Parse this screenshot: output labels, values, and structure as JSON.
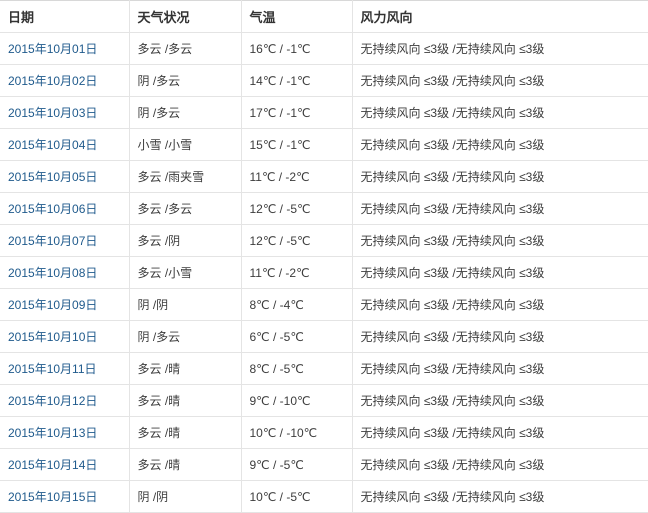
{
  "colors": {
    "date_link": "#1f5a8c",
    "body_text": "#3c3c3c",
    "header_text": "#333333",
    "border": "#e4e4e4",
    "border_top": "#d8d8d8",
    "background": "#ffffff"
  },
  "table": {
    "columns": [
      {
        "key": "date",
        "label": "日期"
      },
      {
        "key": "weather",
        "label": "天气状况"
      },
      {
        "key": "temp",
        "label": "气温"
      },
      {
        "key": "wind",
        "label": "风力风向"
      }
    ],
    "rows": [
      {
        "date": "2015年10月01日",
        "weather": "多云 /多云",
        "temp": "16℃ / -1℃",
        "wind": "无持续风向 ≤3级 /无持续风向 ≤3级"
      },
      {
        "date": "2015年10月02日",
        "weather": "阴 /多云",
        "temp": "14℃ / -1℃",
        "wind": "无持续风向 ≤3级 /无持续风向 ≤3级"
      },
      {
        "date": "2015年10月03日",
        "weather": "阴 /多云",
        "temp": "17℃ / -1℃",
        "wind": "无持续风向 ≤3级 /无持续风向 ≤3级"
      },
      {
        "date": "2015年10月04日",
        "weather": "小雪 /小雪",
        "temp": "15℃ / -1℃",
        "wind": "无持续风向 ≤3级 /无持续风向 ≤3级"
      },
      {
        "date": "2015年10月05日",
        "weather": "多云 /雨夹雪",
        "temp": "11℃ / -2℃",
        "wind": "无持续风向 ≤3级 /无持续风向 ≤3级"
      },
      {
        "date": "2015年10月06日",
        "weather": "多云 /多云",
        "temp": "12℃ / -5℃",
        "wind": "无持续风向 ≤3级 /无持续风向 ≤3级"
      },
      {
        "date": "2015年10月07日",
        "weather": "多云 /阴",
        "temp": "12℃ / -5℃",
        "wind": "无持续风向 ≤3级 /无持续风向 ≤3级"
      },
      {
        "date": "2015年10月08日",
        "weather": "多云 /小雪",
        "temp": "11℃ / -2℃",
        "wind": "无持续风向 ≤3级 /无持续风向 ≤3级"
      },
      {
        "date": "2015年10月09日",
        "weather": "阴 /阴",
        "temp": "8℃ / -4℃",
        "wind": "无持续风向 ≤3级 /无持续风向 ≤3级"
      },
      {
        "date": "2015年10月10日",
        "weather": "阴 /多云",
        "temp": "6℃ / -5℃",
        "wind": "无持续风向 ≤3级 /无持续风向 ≤3级"
      },
      {
        "date": "2015年10月11日",
        "weather": "多云 /晴",
        "temp": "8℃ / -5℃",
        "wind": "无持续风向 ≤3级 /无持续风向 ≤3级"
      },
      {
        "date": "2015年10月12日",
        "weather": "多云 /晴",
        "temp": "9℃ / -10℃",
        "wind": "无持续风向 ≤3级 /无持续风向 ≤3级"
      },
      {
        "date": "2015年10月13日",
        "weather": "多云 /晴",
        "temp": "10℃ / -10℃",
        "wind": "无持续风向 ≤3级 /无持续风向 ≤3级"
      },
      {
        "date": "2015年10月14日",
        "weather": "多云 /晴",
        "temp": "9℃ / -5℃",
        "wind": "无持续风向 ≤3级 /无持续风向 ≤3级"
      },
      {
        "date": "2015年10月15日",
        "weather": "阴 /阴",
        "temp": "10℃ / -5℃",
        "wind": "无持续风向 ≤3级 /无持续风向 ≤3级"
      }
    ]
  }
}
